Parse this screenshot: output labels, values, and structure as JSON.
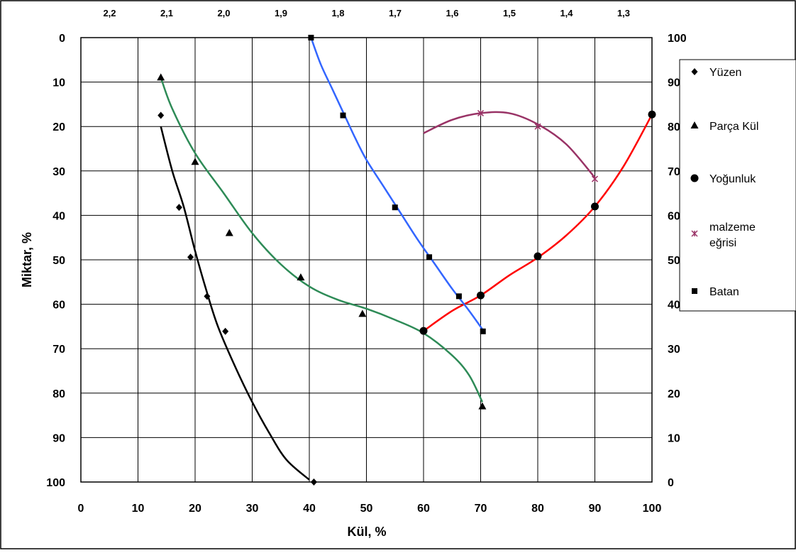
{
  "chart_data": {
    "type": "scatter",
    "xlabel": "Kül, %",
    "ylabel": "Miktar, %",
    "xlim": [
      0,
      100
    ],
    "ylim_left": [
      0,
      100
    ],
    "left_axis_inverted": true,
    "ylim_right": [
      0,
      100
    ],
    "x_ticks": [
      "0",
      "10",
      "20",
      "30",
      "40",
      "50",
      "60",
      "70",
      "80",
      "90",
      "100"
    ],
    "y_left_ticks": [
      "0",
      "10",
      "20",
      "30",
      "40",
      "50",
      "60",
      "70",
      "80",
      "90",
      "100"
    ],
    "y_right_ticks": [
      "100",
      "90",
      "80",
      "70",
      "60",
      "50",
      "40",
      "30",
      "20",
      "10",
      "0"
    ],
    "top_axis_ticks": [
      "2,2",
      "2,1",
      "2,0",
      "1,9",
      "1,8",
      "1,7",
      "1,6",
      "1,5",
      "1,4",
      "1,3"
    ],
    "grid": true,
    "legend_position": "right",
    "series": [
      {
        "name": "Yüzen",
        "marker": "diamond",
        "axis": "left",
        "color": "#000000",
        "points": [
          [
            14,
            17.5
          ],
          [
            17.2,
            38.2
          ],
          [
            19.2,
            49.4
          ],
          [
            22.1,
            58.2
          ],
          [
            25.3,
            66.1
          ],
          [
            40.8,
            100
          ]
        ],
        "curve": [
          [
            14,
            20
          ],
          [
            16,
            30
          ],
          [
            18,
            38
          ],
          [
            20,
            48
          ],
          [
            22,
            57
          ],
          [
            24,
            65
          ],
          [
            27,
            74
          ],
          [
            30,
            82
          ],
          [
            33,
            89
          ],
          [
            36,
            95
          ],
          [
            40,
            99.5
          ]
        ]
      },
      {
        "name": "Parça Kül",
        "marker": "triangle",
        "axis": "left",
        "color": "#2e8b57",
        "points": [
          [
            14,
            9
          ],
          [
            20,
            28
          ],
          [
            26,
            44
          ],
          [
            38.5,
            54
          ],
          [
            49.3,
            62.2
          ],
          [
            70.3,
            83
          ]
        ],
        "curve": [
          [
            14,
            9
          ],
          [
            16,
            16
          ],
          [
            20,
            26
          ],
          [
            25,
            35
          ],
          [
            30,
            44
          ],
          [
            35,
            51
          ],
          [
            40,
            56
          ],
          [
            45,
            59
          ],
          [
            50,
            61
          ],
          [
            55,
            63.5
          ],
          [
            60,
            66.5
          ],
          [
            65,
            71.5
          ],
          [
            68,
            76
          ],
          [
            70.3,
            82
          ]
        ]
      },
      {
        "name": "Yoğunluk",
        "marker": "circle",
        "axis": "right",
        "color": "#ff0000",
        "points": [
          [
            60,
            34
          ],
          [
            70,
            42
          ],
          [
            80,
            50.8
          ],
          [
            90,
            62
          ],
          [
            100,
            82.7
          ]
        ],
        "curve": [
          [
            60,
            34
          ],
          [
            65,
            38.5
          ],
          [
            70,
            42
          ],
          [
            75,
            46.5
          ],
          [
            80,
            50.5
          ],
          [
            85,
            55.5
          ],
          [
            90,
            62
          ],
          [
            95,
            71
          ],
          [
            100,
            82.7
          ]
        ]
      },
      {
        "name": "malzeme eğrisi",
        "marker": "star",
        "axis": "right",
        "color": "#993366",
        "points": [
          [
            70,
            83
          ],
          [
            80,
            80
          ],
          [
            90,
            68.2
          ]
        ],
        "curve": [
          [
            60,
            78.5
          ],
          [
            65,
            81.5
          ],
          [
            70,
            83
          ],
          [
            75,
            83
          ],
          [
            80,
            80.5
          ],
          [
            85,
            76
          ],
          [
            90,
            68.5
          ]
        ]
      },
      {
        "name": "Batan",
        "marker": "square",
        "axis": "left",
        "color": "#3366ff",
        "points": [
          [
            40.3,
            0
          ],
          [
            45.9,
            17.5
          ],
          [
            55,
            38.2
          ],
          [
            61,
            49.4
          ],
          [
            66.2,
            58.2
          ],
          [
            70.4,
            66.1
          ]
        ],
        "curve": [
          [
            40.3,
            0
          ],
          [
            42,
            6
          ],
          [
            44,
            11.5
          ],
          [
            46,
            17
          ],
          [
            48,
            22.5
          ],
          [
            50,
            27.5
          ],
          [
            53,
            33.5
          ],
          [
            56,
            39.5
          ],
          [
            59,
            45.5
          ],
          [
            62,
            51
          ],
          [
            65,
            56.5
          ],
          [
            68,
            61.5
          ],
          [
            70.4,
            65.8
          ]
        ]
      }
    ]
  }
}
